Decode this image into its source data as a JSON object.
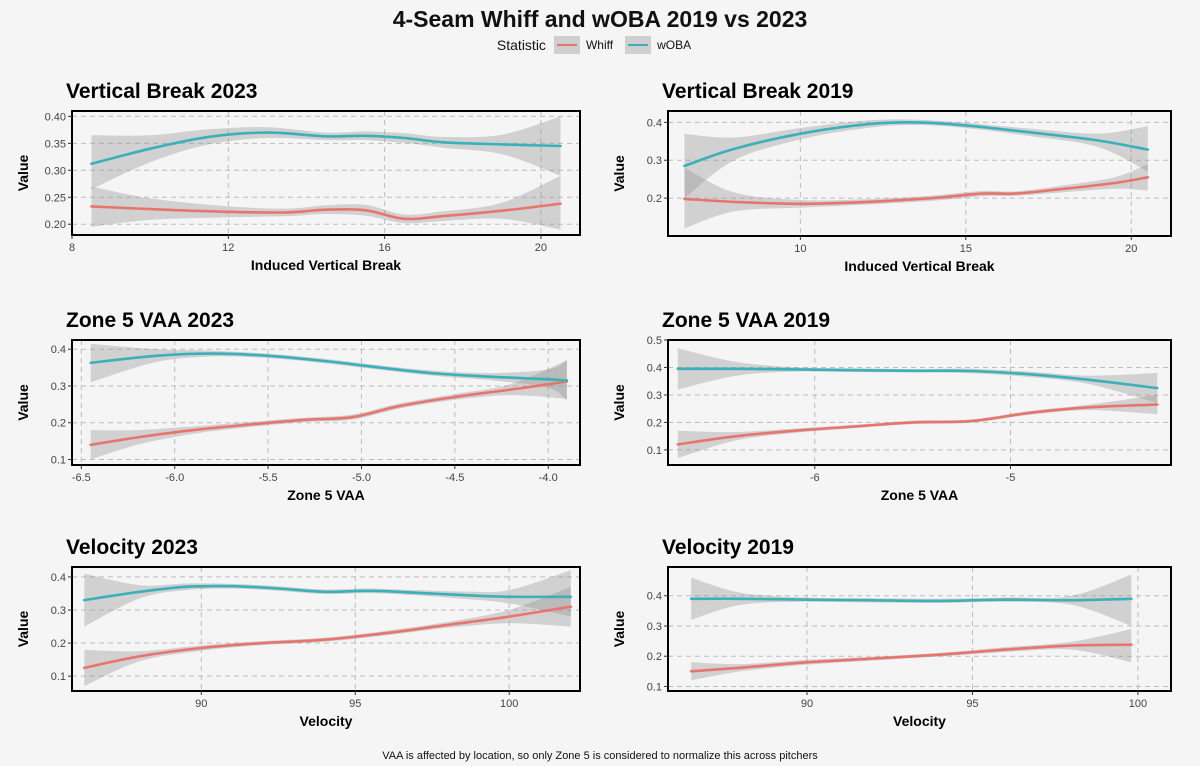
{
  "title": "4-Seam Whiff and wOBA 2019 vs 2023",
  "legend": {
    "title": "Statistic",
    "entries": [
      {
        "name": "Whiff",
        "color": "#e8756d"
      },
      {
        "name": "wOBA",
        "color": "#3ab0b8"
      }
    ]
  },
  "footnote": "VAA is affected by location, so only Zone 5 is considered to normalize this across pitchers",
  "chart_data": [
    {
      "type": "line",
      "title": "Vertical Break 2023",
      "xlabel": "Induced Vertical Break",
      "ylabel": "Value",
      "xlim": [
        8,
        21
      ],
      "ylim": [
        0.18,
        0.41
      ],
      "xticks": [
        8,
        12,
        16,
        20
      ],
      "yticks": [
        0.2,
        0.25,
        0.3,
        0.35,
        0.4
      ],
      "ytick_labels": [
        "0.20",
        "0.25",
        "0.30",
        "0.35",
        "0.40"
      ],
      "series": [
        {
          "name": "Whiff",
          "color": "#e8756d",
          "x": [
            8.5,
            10,
            12,
            13.5,
            14.5,
            15.5,
            16.5,
            17.5,
            19,
            20.5
          ],
          "y": [
            0.233,
            0.228,
            0.223,
            0.222,
            0.227,
            0.226,
            0.21,
            0.215,
            0.225,
            0.238
          ],
          "lower": [
            0.195,
            0.208,
            0.213,
            0.215,
            0.219,
            0.216,
            0.202,
            0.206,
            0.21,
            0.19
          ],
          "upper": [
            0.27,
            0.248,
            0.233,
            0.229,
            0.235,
            0.236,
            0.218,
            0.224,
            0.24,
            0.29
          ]
        },
        {
          "name": "wOBA",
          "color": "#3ab0b8",
          "x": [
            8.5,
            10,
            11.5,
            13,
            14.5,
            15.5,
            16.5,
            17.5,
            19,
            20.5
          ],
          "y": [
            0.312,
            0.34,
            0.362,
            0.37,
            0.363,
            0.364,
            0.36,
            0.352,
            0.348,
            0.345
          ],
          "lower": [
            0.265,
            0.315,
            0.348,
            0.36,
            0.356,
            0.356,
            0.351,
            0.342,
            0.33,
            0.29
          ],
          "upper": [
            0.365,
            0.365,
            0.376,
            0.38,
            0.37,
            0.372,
            0.369,
            0.362,
            0.366,
            0.4
          ]
        }
      ]
    },
    {
      "type": "line",
      "title": "Vertical Break 2019",
      "xlabel": "Induced Vertical Break",
      "ylabel": "Value",
      "xlim": [
        6,
        21.2
      ],
      "ylim": [
        0.1,
        0.43
      ],
      "xticks": [
        10,
        15,
        20
      ],
      "yticks": [
        0.2,
        0.3,
        0.4
      ],
      "ytick_labels": [
        "0.2",
        "0.3",
        "0.4"
      ],
      "series": [
        {
          "name": "Whiff",
          "color": "#e8756d",
          "x": [
            6.5,
            8,
            10,
            12,
            14,
            15.5,
            16.5,
            18,
            19.5,
            20.5
          ],
          "y": [
            0.198,
            0.19,
            0.185,
            0.19,
            0.2,
            0.212,
            0.212,
            0.225,
            0.24,
            0.255
          ],
          "lower": [
            0.12,
            0.165,
            0.175,
            0.183,
            0.193,
            0.205,
            0.206,
            0.216,
            0.225,
            0.22
          ],
          "upper": [
            0.28,
            0.215,
            0.195,
            0.197,
            0.207,
            0.219,
            0.218,
            0.234,
            0.255,
            0.29
          ]
        },
        {
          "name": "wOBA",
          "color": "#3ab0b8",
          "x": [
            6.5,
            8,
            10,
            12,
            13.5,
            15,
            17,
            19,
            20.5
          ],
          "y": [
            0.285,
            0.33,
            0.37,
            0.395,
            0.4,
            0.392,
            0.373,
            0.352,
            0.328
          ],
          "lower": [
            0.2,
            0.3,
            0.355,
            0.385,
            0.393,
            0.385,
            0.363,
            0.335,
            0.27
          ],
          "upper": [
            0.37,
            0.36,
            0.385,
            0.405,
            0.407,
            0.399,
            0.383,
            0.37,
            0.39
          ]
        }
      ]
    },
    {
      "type": "line",
      "title": "Zone 5 VAA 2023",
      "xlabel": "Zone 5 VAA",
      "ylabel": "Value",
      "xlim": [
        -6.55,
        -3.83
      ],
      "ylim": [
        0.085,
        0.425
      ],
      "xticks": [
        -6.5,
        -6,
        -5.5,
        -5,
        -4.5,
        -4
      ],
      "xtick_labels": [
        "-6.5",
        "-6.0",
        "-5.5",
        "-5.0",
        "-4.5",
        "-4.0"
      ],
      "yticks": [
        0.1,
        0.2,
        0.3,
        0.4
      ],
      "ytick_labels": [
        "0.1",
        "0.2",
        "0.3",
        "0.4"
      ],
      "series": [
        {
          "name": "Whiff",
          "color": "#e8756d",
          "x": [
            -6.45,
            -6.2,
            -5.9,
            -5.6,
            -5.3,
            -5.05,
            -4.8,
            -4.5,
            -4.2,
            -3.9
          ],
          "y": [
            0.14,
            0.16,
            0.18,
            0.195,
            0.208,
            0.215,
            0.245,
            0.27,
            0.29,
            0.312
          ],
          "lower": [
            0.1,
            0.14,
            0.17,
            0.188,
            0.202,
            0.208,
            0.238,
            0.262,
            0.275,
            0.265
          ],
          "upper": [
            0.18,
            0.18,
            0.19,
            0.202,
            0.214,
            0.222,
            0.252,
            0.278,
            0.305,
            0.37
          ]
        },
        {
          "name": "wOBA",
          "color": "#3ab0b8",
          "x": [
            -6.45,
            -6.1,
            -5.8,
            -5.5,
            -5.2,
            -4.9,
            -4.6,
            -4.3,
            -4.0,
            -3.9
          ],
          "y": [
            0.363,
            0.382,
            0.388,
            0.382,
            0.368,
            0.35,
            0.334,
            0.325,
            0.318,
            0.315
          ],
          "lower": [
            0.31,
            0.365,
            0.38,
            0.376,
            0.362,
            0.344,
            0.327,
            0.315,
            0.295,
            0.26
          ],
          "upper": [
            0.415,
            0.4,
            0.396,
            0.388,
            0.374,
            0.356,
            0.341,
            0.335,
            0.345,
            0.37
          ]
        }
      ]
    },
    {
      "type": "line",
      "title": "Zone 5 VAA 2019",
      "xlabel": "Zone 5 VAA",
      "ylabel": "Value",
      "xlim": [
        -6.75,
        -4.18
      ],
      "ylim": [
        0.045,
        0.5
      ],
      "xticks": [
        -6,
        -5
      ],
      "xtick_labels": [
        "-6",
        "-5"
      ],
      "yticks": [
        0.1,
        0.2,
        0.3,
        0.4,
        0.5
      ],
      "ytick_labels": [
        "0.1",
        "0.2",
        "0.3",
        "0.4",
        "0.5"
      ],
      "series": [
        {
          "name": "Whiff",
          "color": "#e8756d",
          "x": [
            -6.7,
            -6.4,
            -6.1,
            -5.8,
            -5.5,
            -5.2,
            -4.9,
            -4.6,
            -4.25
          ],
          "y": [
            0.12,
            0.15,
            0.17,
            0.185,
            0.2,
            0.205,
            0.235,
            0.255,
            0.265
          ],
          "lower": [
            0.07,
            0.135,
            0.162,
            0.179,
            0.194,
            0.199,
            0.228,
            0.245,
            0.23
          ],
          "upper": [
            0.17,
            0.165,
            0.178,
            0.191,
            0.206,
            0.211,
            0.242,
            0.265,
            0.3
          ]
        },
        {
          "name": "wOBA",
          "color": "#3ab0b8",
          "x": [
            -6.7,
            -6.4,
            -6.1,
            -5.8,
            -5.5,
            -5.2,
            -4.9,
            -4.6,
            -4.25
          ],
          "y": [
            0.395,
            0.395,
            0.393,
            0.39,
            0.388,
            0.387,
            0.375,
            0.355,
            0.325
          ],
          "lower": [
            0.32,
            0.37,
            0.385,
            0.383,
            0.382,
            0.379,
            0.365,
            0.34,
            0.27
          ],
          "upper": [
            0.47,
            0.42,
            0.401,
            0.397,
            0.394,
            0.395,
            0.385,
            0.37,
            0.38
          ]
        }
      ]
    },
    {
      "type": "line",
      "title": "Velocity 2023",
      "xlabel": "Velocity",
      "ylabel": "Value",
      "xlim": [
        85.8,
        102.3
      ],
      "ylim": [
        0.055,
        0.43
      ],
      "xticks": [
        90,
        95,
        100
      ],
      "yticks": [
        0.1,
        0.2,
        0.3,
        0.4
      ],
      "ytick_labels": [
        "0.1",
        "0.2",
        "0.3",
        "0.4"
      ],
      "series": [
        {
          "name": "Whiff",
          "color": "#e8756d",
          "x": [
            86.2,
            88,
            90,
            92,
            94,
            96,
            98,
            100,
            102
          ],
          "y": [
            0.125,
            0.16,
            0.185,
            0.2,
            0.21,
            0.23,
            0.255,
            0.28,
            0.31
          ],
          "lower": [
            0.07,
            0.145,
            0.177,
            0.194,
            0.204,
            0.223,
            0.246,
            0.26,
            0.25
          ],
          "upper": [
            0.18,
            0.175,
            0.193,
            0.206,
            0.216,
            0.237,
            0.264,
            0.3,
            0.37
          ]
        },
        {
          "name": "wOBA",
          "color": "#3ab0b8",
          "x": [
            86.2,
            88,
            89.5,
            91,
            92.5,
            94,
            95.5,
            97,
            98.5,
            100,
            102
          ],
          "y": [
            0.33,
            0.355,
            0.37,
            0.372,
            0.365,
            0.355,
            0.358,
            0.352,
            0.345,
            0.34,
            0.34
          ],
          "lower": [
            0.25,
            0.335,
            0.36,
            0.365,
            0.358,
            0.348,
            0.351,
            0.344,
            0.334,
            0.32,
            0.28
          ],
          "upper": [
            0.41,
            0.375,
            0.38,
            0.379,
            0.372,
            0.362,
            0.365,
            0.36,
            0.356,
            0.36,
            0.42
          ]
        }
      ]
    },
    {
      "type": "line",
      "title": "Velocity 2019",
      "xlabel": "Velocity",
      "ylabel": "Value",
      "xlim": [
        85.8,
        101
      ],
      "ylim": [
        0.085,
        0.495
      ],
      "xticks": [
        90,
        95,
        100
      ],
      "yticks": [
        0.1,
        0.2,
        0.3,
        0.4
      ],
      "ytick_labels": [
        "0.1",
        "0.2",
        "0.3",
        "0.4"
      ],
      "series": [
        {
          "name": "Whiff",
          "color": "#e8756d",
          "x": [
            86.5,
            88,
            90,
            92,
            94,
            96,
            98,
            99.8
          ],
          "y": [
            0.15,
            0.162,
            0.18,
            0.192,
            0.205,
            0.222,
            0.235,
            0.238
          ],
          "lower": [
            0.12,
            0.15,
            0.172,
            0.186,
            0.199,
            0.214,
            0.222,
            0.18
          ],
          "upper": [
            0.18,
            0.174,
            0.188,
            0.198,
            0.211,
            0.23,
            0.248,
            0.29
          ]
        },
        {
          "name": "wOBA",
          "color": "#3ab0b8",
          "x": [
            86.5,
            88,
            90,
            92,
            94,
            96,
            98,
            99.8
          ],
          "y": [
            0.39,
            0.39,
            0.387,
            0.385,
            0.383,
            0.387,
            0.385,
            0.39
          ],
          "lower": [
            0.32,
            0.37,
            0.38,
            0.378,
            0.376,
            0.38,
            0.37,
            0.3
          ],
          "upper": [
            0.46,
            0.41,
            0.394,
            0.392,
            0.39,
            0.394,
            0.4,
            0.47
          ]
        }
      ]
    }
  ]
}
